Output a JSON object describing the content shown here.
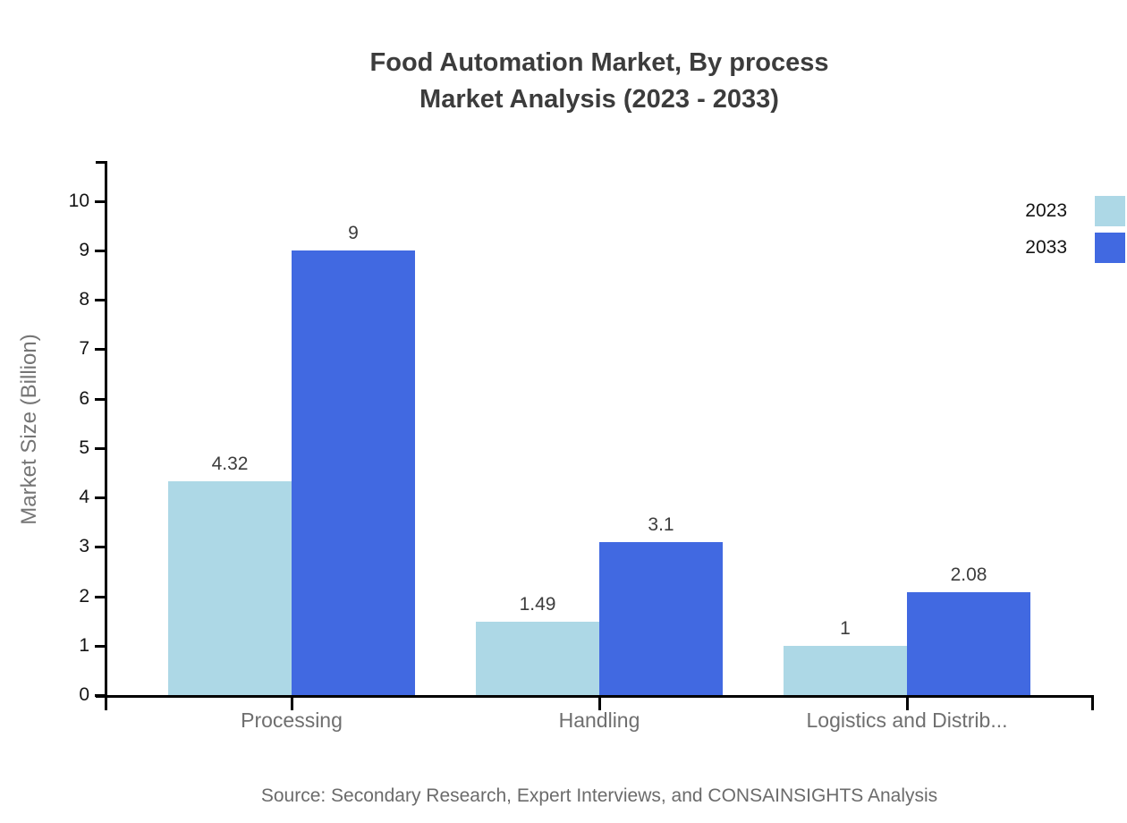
{
  "header": {
    "title_line1": "Food Automation Market, By process",
    "title_line2": "Market Analysis (2023 - 2033)"
  },
  "footer": {
    "source": "Source: Secondary Research, Expert Interviews, and CONSAINSIGHTS Analysis"
  },
  "chart_data": {
    "type": "bar",
    "title": "Food Automation Market, By process Market Analysis (2023 - 2033)",
    "categories": [
      "Processing",
      "Handling",
      "Logistics and Distrib..."
    ],
    "series": [
      {
        "name": "2023",
        "color": "#ADD8E6",
        "values": [
          4.32,
          1.49,
          1
        ]
      },
      {
        "name": "2033",
        "color": "#4169E1",
        "values": [
          9,
          3.1,
          2.08
        ]
      }
    ],
    "xlabel": "",
    "ylabel": "Market Size (Billion)",
    "ylim": [
      0,
      10
    ],
    "ytick_step": 1,
    "grid": false,
    "legend_position": "top-right",
    "bar_value_labels": true
  }
}
